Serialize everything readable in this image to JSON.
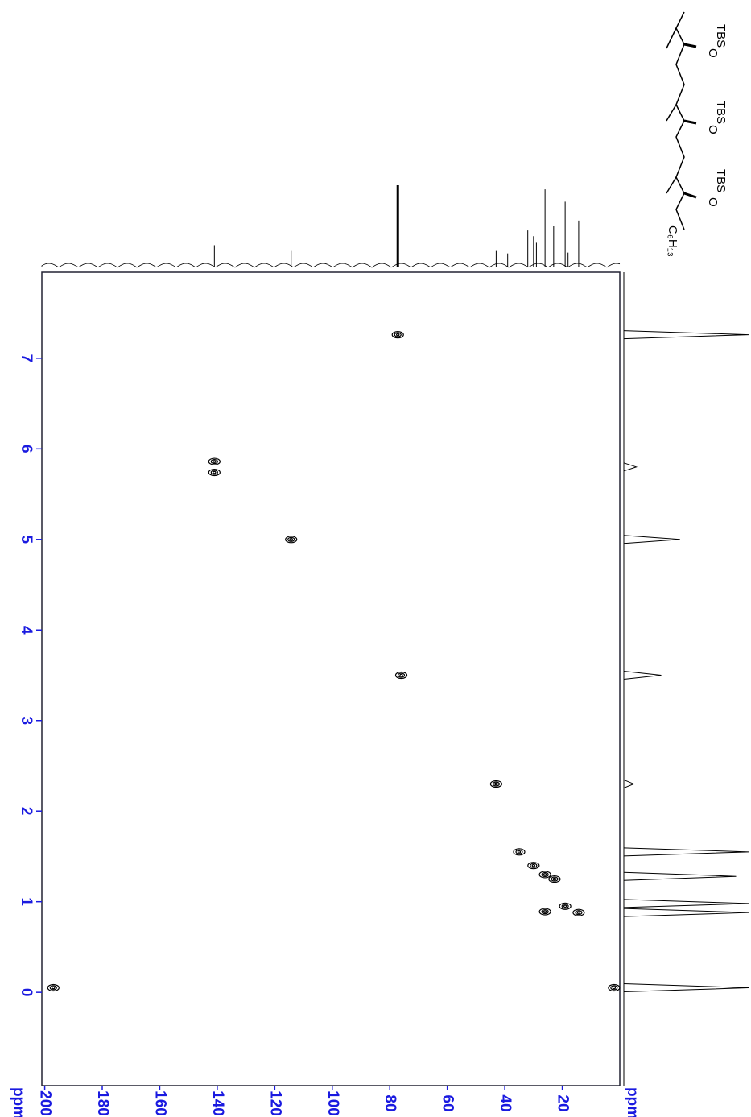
{
  "chart_data": {
    "type": "hsqc",
    "x_label": "ppm",
    "y_label": "ppm",
    "xlim": [
      201,
      0
    ],
    "ylim": [
      -1.03,
      7.95
    ],
    "xticks": [
      200,
      180,
      160,
      140,
      120,
      100,
      80,
      60,
      40,
      20
    ],
    "yticks": [
      0,
      1,
      2,
      3,
      4,
      5,
      6,
      7
    ],
    "cross_peaks": {
      "x": [
        77.2,
        141,
        141,
        114.3,
        76,
        43,
        26,
        26,
        30,
        35,
        19,
        14.3,
        22.7,
        197,
        2
      ],
      "y": [
        7.26,
        5.86,
        5.74,
        5.0,
        3.5,
        2.3,
        0.89,
        1.3,
        1.4,
        1.55,
        0.95,
        0.88,
        1.25,
        0.05,
        0.05
      ]
    },
    "c13_projection": {
      "x": [
        141,
        114.3,
        77.2,
        43,
        39,
        32,
        30,
        29,
        26,
        23,
        19,
        18,
        14.3
      ],
      "values": [
        27,
        20,
        100,
        20,
        17,
        45,
        38,
        30,
        95,
        50,
        80,
        18,
        57
      ]
    },
    "h1_projection": {
      "x": [
        7.26,
        5.8,
        5.0,
        3.5,
        2.3,
        1.55,
        1.28,
        0.98,
        0.88,
        0.05
      ],
      "values": [
        100,
        10,
        45,
        30,
        8,
        100,
        90,
        100,
        100,
        100
      ]
    }
  },
  "structure": {
    "labels": [
      "TBS",
      "O",
      "TBS",
      "O",
      "TBS",
      "O",
      "C₆H₁₃"
    ]
  }
}
